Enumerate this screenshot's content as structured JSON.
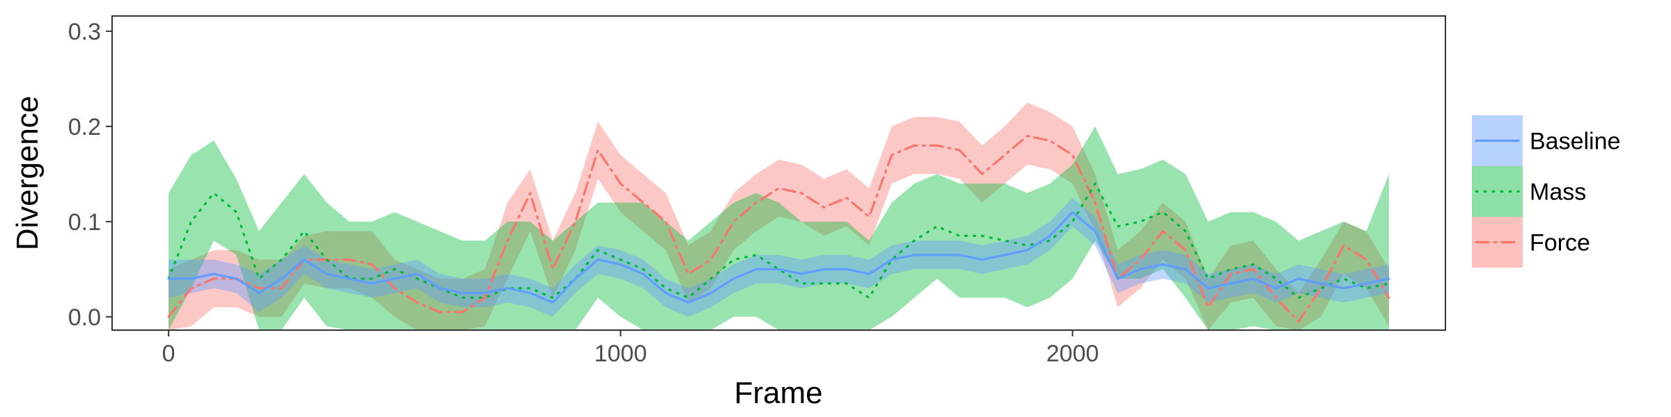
{
  "chart_data": {
    "type": "line",
    "xlabel": "Frame",
    "ylabel": "Divergence",
    "xlim": [
      -125,
      2825
    ],
    "ylim": [
      -0.014,
      0.316
    ],
    "xticks": [
      0,
      1000,
      2000
    ],
    "xtick_labels": [
      "0",
      "1000",
      "2000"
    ],
    "yticks": [
      0.0,
      0.1,
      0.2,
      0.3
    ],
    "ytick_labels": [
      "0.0",
      "0.1",
      "0.2",
      "0.3"
    ],
    "grid": false,
    "legend_position": "right",
    "series": [
      {
        "name": "Force",
        "color": "#f8766d",
        "line_style": "dashdot",
        "x": [
          0,
          50,
          100,
          150,
          200,
          250,
          300,
          350,
          400,
          450,
          500,
          550,
          600,
          650,
          700,
          750,
          800,
          850,
          900,
          950,
          1000,
          1050,
          1100,
          1150,
          1200,
          1250,
          1300,
          1350,
          1400,
          1450,
          1500,
          1550,
          1600,
          1650,
          1700,
          1750,
          1800,
          1850,
          1900,
          1950,
          2000,
          2050,
          2100,
          2150,
          2200,
          2250,
          2300,
          2350,
          2400,
          2450,
          2500,
          2550,
          2600,
          2650,
          2700
        ],
        "y": [
          0.0,
          0.03,
          0.04,
          0.04,
          0.03,
          0.03,
          0.06,
          0.06,
          0.06,
          0.055,
          0.03,
          0.015,
          0.005,
          0.005,
          0.02,
          0.08,
          0.13,
          0.05,
          0.1,
          0.175,
          0.14,
          0.12,
          0.1,
          0.045,
          0.06,
          0.1,
          0.12,
          0.135,
          0.13,
          0.115,
          0.125,
          0.105,
          0.17,
          0.18,
          0.18,
          0.175,
          0.15,
          0.17,
          0.19,
          0.185,
          0.17,
          0.12,
          0.04,
          0.06,
          0.09,
          0.07,
          0.01,
          0.045,
          0.05,
          0.02,
          -0.005,
          0.03,
          0.075,
          0.06,
          0.02
        ],
        "lower": [
          -0.05,
          -0.01,
          0.01,
          0.01,
          0.0,
          0.0,
          0.035,
          0.03,
          0.03,
          0.02,
          0.0,
          -0.02,
          -0.04,
          -0.04,
          -0.01,
          0.04,
          0.09,
          0.02,
          0.07,
          0.145,
          0.11,
          0.09,
          0.07,
          0.015,
          0.03,
          0.07,
          0.09,
          0.105,
          0.1,
          0.085,
          0.095,
          0.075,
          0.14,
          0.15,
          0.15,
          0.145,
          0.12,
          0.14,
          0.16,
          0.155,
          0.14,
          0.09,
          0.01,
          0.03,
          0.06,
          0.04,
          -0.02,
          0.015,
          0.02,
          -0.01,
          -0.035,
          0.0,
          0.045,
          0.03,
          -0.01
        ],
        "upper": [
          0.05,
          0.06,
          0.07,
          0.07,
          0.06,
          0.06,
          0.085,
          0.09,
          0.09,
          0.09,
          0.06,
          0.05,
          0.04,
          0.04,
          0.05,
          0.12,
          0.155,
          0.08,
          0.13,
          0.205,
          0.17,
          0.15,
          0.13,
          0.075,
          0.09,
          0.13,
          0.15,
          0.165,
          0.16,
          0.145,
          0.155,
          0.135,
          0.2,
          0.21,
          0.21,
          0.205,
          0.18,
          0.2,
          0.225,
          0.215,
          0.2,
          0.15,
          0.07,
          0.09,
          0.12,
          0.1,
          0.04,
          0.075,
          0.08,
          0.05,
          0.025,
          0.06,
          0.1,
          0.09,
          0.05
        ]
      },
      {
        "name": "Mass",
        "color": "#00ba38",
        "line_style": "dotted",
        "x": [
          0,
          50,
          100,
          150,
          200,
          250,
          300,
          350,
          400,
          450,
          500,
          550,
          600,
          650,
          700,
          750,
          800,
          850,
          900,
          950,
          1000,
          1050,
          1100,
          1150,
          1200,
          1250,
          1300,
          1350,
          1400,
          1450,
          1500,
          1550,
          1600,
          1650,
          1700,
          1750,
          1800,
          1850,
          1900,
          1950,
          2000,
          2050,
          2100,
          2150,
          2200,
          2250,
          2300,
          2350,
          2400,
          2450,
          2500,
          2550,
          2600,
          2650,
          2700
        ],
        "y": [
          0.04,
          0.1,
          0.13,
          0.11,
          0.04,
          0.06,
          0.09,
          0.06,
          0.04,
          0.04,
          0.05,
          0.04,
          0.03,
          0.02,
          0.02,
          0.03,
          0.03,
          0.02,
          0.04,
          0.07,
          0.06,
          0.05,
          0.03,
          0.02,
          0.04,
          0.06,
          0.065,
          0.05,
          0.035,
          0.035,
          0.035,
          0.02,
          0.06,
          0.08,
          0.095,
          0.085,
          0.085,
          0.08,
          0.075,
          0.08,
          0.1,
          0.14,
          0.095,
          0.1,
          0.11,
          0.09,
          0.04,
          0.05,
          0.055,
          0.04,
          0.02,
          0.03,
          0.04,
          0.03,
          0.035
        ],
        "lower": [
          -0.03,
          0.03,
          0.08,
          0.065,
          -0.02,
          -0.02,
          0.02,
          -0.01,
          -0.03,
          -0.02,
          -0.02,
          -0.03,
          -0.03,
          -0.04,
          -0.04,
          -0.04,
          -0.04,
          -0.04,
          -0.02,
          0.02,
          0.0,
          -0.02,
          -0.04,
          -0.04,
          -0.02,
          0.0,
          0.0,
          -0.02,
          -0.03,
          -0.03,
          -0.03,
          -0.04,
          0.0,
          0.02,
          0.04,
          0.02,
          0.02,
          0.02,
          0.01,
          0.02,
          0.04,
          0.08,
          0.04,
          0.04,
          0.05,
          0.02,
          -0.02,
          -0.02,
          -0.01,
          -0.02,
          -0.04,
          -0.03,
          -0.02,
          -0.03,
          -0.03
        ],
        "upper": [
          0.13,
          0.17,
          0.185,
          0.145,
          0.09,
          0.12,
          0.15,
          0.12,
          0.1,
          0.1,
          0.11,
          0.1,
          0.09,
          0.08,
          0.08,
          0.1,
          0.1,
          0.08,
          0.1,
          0.12,
          0.12,
          0.12,
          0.1,
          0.08,
          0.1,
          0.12,
          0.13,
          0.12,
          0.1,
          0.1,
          0.1,
          0.08,
          0.12,
          0.14,
          0.15,
          0.14,
          0.14,
          0.14,
          0.13,
          0.14,
          0.16,
          0.2,
          0.15,
          0.155,
          0.165,
          0.15,
          0.1,
          0.11,
          0.11,
          0.1,
          0.08,
          0.09,
          0.1,
          0.09,
          0.15
        ]
      },
      {
        "name": "Baseline",
        "color": "#619cff",
        "line_style": "solid",
        "x": [
          0,
          50,
          100,
          150,
          200,
          250,
          300,
          350,
          400,
          450,
          500,
          550,
          600,
          650,
          700,
          750,
          800,
          850,
          900,
          950,
          1000,
          1050,
          1100,
          1150,
          1200,
          1250,
          1300,
          1350,
          1400,
          1450,
          1500,
          1550,
          1600,
          1650,
          1700,
          1750,
          1800,
          1850,
          1900,
          1950,
          2000,
          2050,
          2100,
          2150,
          2200,
          2250,
          2300,
          2350,
          2400,
          2450,
          2500,
          2550,
          2600,
          2650,
          2700
        ],
        "y": [
          0.04,
          0.04,
          0.045,
          0.04,
          0.025,
          0.04,
          0.06,
          0.045,
          0.04,
          0.035,
          0.04,
          0.045,
          0.03,
          0.025,
          0.025,
          0.03,
          0.025,
          0.015,
          0.04,
          0.06,
          0.055,
          0.045,
          0.025,
          0.015,
          0.025,
          0.04,
          0.05,
          0.05,
          0.045,
          0.05,
          0.05,
          0.045,
          0.06,
          0.065,
          0.065,
          0.065,
          0.06,
          0.065,
          0.07,
          0.085,
          0.11,
          0.09,
          0.04,
          0.05,
          0.055,
          0.05,
          0.03,
          0.035,
          0.04,
          0.03,
          0.04,
          0.035,
          0.03,
          0.035,
          0.04
        ],
        "lower": [
          0.02,
          0.025,
          0.03,
          0.025,
          0.005,
          0.02,
          0.045,
          0.03,
          0.025,
          0.02,
          0.025,
          0.03,
          0.015,
          0.01,
          0.01,
          0.015,
          0.01,
          0.0,
          0.025,
          0.045,
          0.04,
          0.03,
          0.01,
          0.0,
          0.01,
          0.025,
          0.035,
          0.035,
          0.03,
          0.035,
          0.035,
          0.03,
          0.045,
          0.05,
          0.05,
          0.05,
          0.045,
          0.05,
          0.055,
          0.07,
          0.095,
          0.075,
          0.025,
          0.035,
          0.04,
          0.035,
          0.015,
          0.02,
          0.025,
          0.015,
          0.025,
          0.02,
          0.015,
          0.02,
          0.025
        ],
        "upper": [
          0.06,
          0.06,
          0.06,
          0.055,
          0.045,
          0.06,
          0.075,
          0.06,
          0.055,
          0.05,
          0.055,
          0.06,
          0.045,
          0.04,
          0.04,
          0.045,
          0.04,
          0.03,
          0.055,
          0.075,
          0.07,
          0.06,
          0.04,
          0.03,
          0.04,
          0.055,
          0.065,
          0.065,
          0.06,
          0.065,
          0.065,
          0.06,
          0.075,
          0.08,
          0.08,
          0.08,
          0.075,
          0.08,
          0.085,
          0.1,
          0.125,
          0.105,
          0.055,
          0.065,
          0.07,
          0.065,
          0.045,
          0.05,
          0.055,
          0.045,
          0.055,
          0.05,
          0.045,
          0.05,
          0.055
        ]
      }
    ],
    "legend": [
      {
        "name": "Baseline",
        "color": "#619cff",
        "line_style": "solid"
      },
      {
        "name": "Mass",
        "color": "#00ba38",
        "line_style": "dotted"
      },
      {
        "name": "Force",
        "color": "#f8766d",
        "line_style": "dashdot"
      }
    ]
  }
}
